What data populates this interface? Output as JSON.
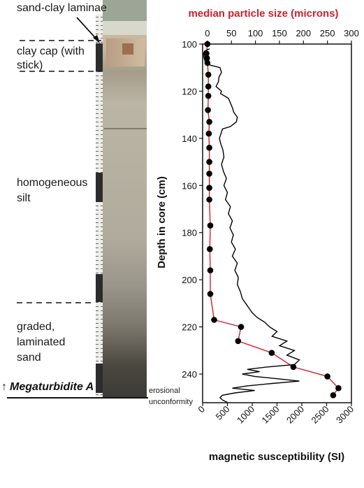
{
  "core_annotations": {
    "labels": [
      {
        "id": "sand-clay-laminae",
        "text": "sand-clay laminae"
      },
      {
        "id": "clay-cap-1",
        "text": "clay cap (with"
      },
      {
        "id": "clay-cap-2",
        "text": "stick)"
      },
      {
        "id": "homogeneous-1",
        "text": "homogeneous"
      },
      {
        "id": "homogeneous-2",
        "text": "silt"
      },
      {
        "id": "graded-1",
        "text": "graded,"
      },
      {
        "id": "graded-2",
        "text": "laminated"
      },
      {
        "id": "graded-3",
        "text": "sand"
      }
    ],
    "megaturbidite": "Megaturbidite A",
    "megaturbidite_arrow": "↑",
    "erosional_1": "erosional",
    "erosional_2": "unconformity"
  },
  "chart_data": {
    "type": "line",
    "ylabel": "Depth in core (cm)",
    "ylim": [
      100,
      252
    ],
    "y_ticks": [
      100,
      120,
      140,
      160,
      180,
      200,
      220,
      240
    ],
    "y_inverted": true,
    "top_axis": {
      "label": "median particle size (microns)",
      "color": "#d11f2a",
      "lim": [
        -10,
        300
      ],
      "ticks": [
        0,
        50,
        100,
        150,
        200,
        250,
        300
      ]
    },
    "bottom_axis": {
      "label": "magnetic susceptibility (SI)",
      "lim": [
        0,
        3000
      ],
      "ticks": [
        0,
        500,
        1000,
        1500,
        2000,
        2500,
        3000
      ]
    },
    "series": [
      {
        "name": "median particle size",
        "axis": "top",
        "color": "#d11f2a",
        "marker": "circle",
        "points": [
          [
            0,
            100
          ],
          [
            -2,
            104
          ],
          [
            -1,
            106
          ],
          [
            0,
            108
          ],
          [
            2,
            113
          ],
          [
            2,
            118
          ],
          [
            2,
            122
          ],
          [
            1,
            128
          ],
          [
            4,
            133
          ],
          [
            3,
            138
          ],
          [
            4,
            144
          ],
          [
            4,
            150
          ],
          [
            4,
            155
          ],
          [
            4,
            161
          ],
          [
            4,
            166
          ],
          [
            6,
            177
          ],
          [
            5,
            187
          ],
          [
            6,
            196
          ],
          [
            6,
            206
          ],
          [
            14,
            217
          ],
          [
            70,
            220
          ],
          [
            64,
            226
          ],
          [
            134,
            231
          ],
          [
            179,
            237
          ],
          [
            250,
            241
          ],
          [
            273,
            246
          ],
          [
            262,
            249
          ]
        ]
      },
      {
        "name": "magnetic susceptibility",
        "axis": "bottom",
        "color": "#000000",
        "points": [
          [
            140,
            102
          ],
          [
            40,
            103
          ],
          [
            15,
            104
          ],
          [
            30,
            106
          ],
          [
            60,
            108
          ],
          [
            160,
            109
          ],
          [
            350,
            110
          ],
          [
            380,
            112
          ],
          [
            330,
            114
          ],
          [
            320,
            116
          ],
          [
            270,
            118
          ],
          [
            380,
            120
          ],
          [
            360,
            121
          ],
          [
            520,
            123
          ],
          [
            560,
            125
          ],
          [
            600,
            127
          ],
          [
            630,
            129
          ],
          [
            700,
            131
          ],
          [
            680,
            133
          ],
          [
            560,
            135
          ],
          [
            400,
            136
          ],
          [
            370,
            138
          ],
          [
            340,
            140
          ],
          [
            360,
            142
          ],
          [
            410,
            145
          ],
          [
            430,
            148
          ],
          [
            380,
            151
          ],
          [
            420,
            154
          ],
          [
            480,
            157
          ],
          [
            430,
            160
          ],
          [
            500,
            163
          ],
          [
            460,
            166
          ],
          [
            560,
            169
          ],
          [
            520,
            172
          ],
          [
            600,
            175
          ],
          [
            550,
            178
          ],
          [
            620,
            181
          ],
          [
            580,
            184
          ],
          [
            660,
            187
          ],
          [
            600,
            190
          ],
          [
            700,
            193
          ],
          [
            650,
            196
          ],
          [
            720,
            199
          ],
          [
            700,
            202
          ],
          [
            760,
            205
          ],
          [
            800,
            208
          ],
          [
            900,
            211
          ],
          [
            1000,
            214
          ],
          [
            1100,
            216
          ],
          [
            1250,
            218
          ],
          [
            1350,
            220
          ],
          [
            1500,
            222
          ],
          [
            1400,
            224
          ],
          [
            1700,
            226
          ],
          [
            1550,
            228
          ],
          [
            1850,
            230
          ],
          [
            1700,
            232
          ],
          [
            1950,
            234
          ],
          [
            1850,
            236
          ],
          [
            1300,
            237
          ],
          [
            900,
            238
          ],
          [
            1150,
            239
          ],
          [
            800,
            240
          ],
          [
            1050,
            241
          ],
          [
            1500,
            242
          ],
          [
            1950,
            243
          ],
          [
            1400,
            244
          ],
          [
            900,
            245
          ],
          [
            600,
            246
          ],
          [
            1050,
            247
          ],
          [
            650,
            248
          ],
          [
            400,
            249
          ],
          [
            350,
            250
          ],
          [
            400,
            251
          ],
          [
            500,
            252
          ]
        ]
      }
    ]
  }
}
